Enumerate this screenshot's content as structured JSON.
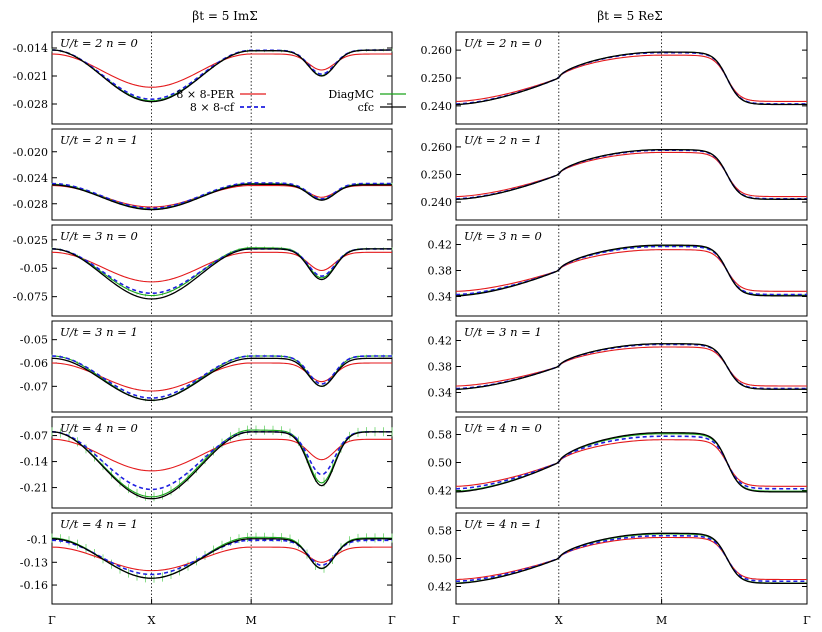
{
  "chart_data": {
    "type": "line",
    "x_ticks": [
      "Γ",
      "X",
      "M",
      "Γ"
    ],
    "columns": [
      {
        "title": "βt = 5   ImΣ"
      },
      {
        "title": "βt = 5   ReΣ"
      }
    ],
    "legend": {
      "placement": "inside top panel of left column",
      "entries": [
        {
          "label": "8 × 8-PER",
          "color": "#e41a1c",
          "style": "solid"
        },
        {
          "label": "DiagMC",
          "color": "#1aa51a",
          "style": "solid"
        },
        {
          "label": "8 × 8-cf",
          "color": "#1f1fe0",
          "style": "dashed"
        },
        {
          "label": "cfc",
          "color": "#000000",
          "style": "solid"
        }
      ]
    },
    "colors": {
      "per": "#e41a1c",
      "diagmc": "#1aa51a",
      "cf": "#1f1fe0",
      "cfc": "#000000",
      "errorbar": "#6bd46b"
    },
    "panels": [
      {
        "column": 0,
        "label": "U/t = 2   n = 0",
        "ylim": [
          -0.033,
          -0.01
        ],
        "yticks": [
          "-0.014",
          "-0.021",
          "-0.028"
        ],
        "ytick_values": [
          -0.014,
          -0.021,
          -0.028
        ],
        "series": {
          "per": {
            "G": -0.0155,
            "X": -0.0238,
            "M": -0.0155,
            "D": -0.0195
          },
          "diagmc": {
            "G": -0.0145,
            "X": -0.0272,
            "M": -0.0147,
            "D": -0.021
          },
          "cf": {
            "G": -0.0145,
            "X": -0.0268,
            "M": -0.0146,
            "D": -0.0206
          },
          "cfc": {
            "G": -0.0145,
            "X": -0.0274,
            "M": -0.0147,
            "D": -0.0211
          }
        }
      },
      {
        "column": 0,
        "label": "U/t = 2   n = 1",
        "ylim": [
          -0.0305,
          -0.0165
        ],
        "yticks": [
          "-0.020",
          "-0.024",
          "-0.028"
        ],
        "ytick_values": [
          -0.02,
          -0.024,
          -0.028
        ],
        "series": {
          "per": {
            "G": -0.0252,
            "X": -0.0285,
            "M": -0.0252,
            "D": -0.027
          },
          "diagmc": {
            "G": -0.025,
            "X": -0.0288,
            "M": -0.0249,
            "D": -0.0273
          },
          "cf": {
            "G": -0.0249,
            "X": -0.0287,
            "M": -0.0248,
            "D": -0.0272
          },
          "cfc": {
            "G": -0.0251,
            "X": -0.0289,
            "M": -0.025,
            "D": -0.0274
          }
        }
      },
      {
        "column": 0,
        "label": "U/t = 3   n = 0",
        "ylim": [
          -0.092,
          -0.012
        ],
        "yticks": [
          "-0.025",
          "-0.05",
          "-0.075"
        ],
        "ytick_values": [
          -0.025,
          -0.05,
          -0.075
        ],
        "series": {
          "per": {
            "G": -0.036,
            "X": -0.062,
            "M": -0.036,
            "D": -0.052
          },
          "diagmc": {
            "G": -0.033,
            "X": -0.074,
            "M": -0.032,
            "D": -0.058
          },
          "cf": {
            "G": -0.033,
            "X": -0.072,
            "M": -0.033,
            "D": -0.057
          },
          "cfc": {
            "G": -0.033,
            "X": -0.077,
            "M": -0.033,
            "D": -0.06
          }
        }
      },
      {
        "column": 0,
        "label": "U/t = 3   n = 1",
        "ylim": [
          -0.081,
          -0.042
        ],
        "yticks": [
          "-0.05",
          "-0.06",
          "-0.07"
        ],
        "ytick_values": [
          -0.05,
          -0.06,
          -0.07
        ],
        "series": {
          "per": {
            "G": -0.06,
            "X": -0.072,
            "M": -0.06,
            "D": -0.068
          },
          "diagmc": {
            "G": -0.057,
            "X": -0.076,
            "M": -0.057,
            "D": -0.07
          },
          "cf": {
            "G": -0.057,
            "X": -0.075,
            "M": -0.057,
            "D": -0.069
          },
          "cfc": {
            "G": -0.058,
            "X": -0.076,
            "M": -0.058,
            "D": -0.07
          }
        }
      },
      {
        "column": 0,
        "label": "U/t = 4   n = 0",
        "ylim": [
          -0.265,
          -0.02
        ],
        "yticks": [
          "-0.07",
          "-0.14",
          "-0.21"
        ],
        "ytick_values": [
          -0.07,
          -0.14,
          -0.21
        ],
        "series": {
          "per": {
            "G": -0.08,
            "X": -0.165,
            "M": -0.08,
            "D": -0.135
          },
          "diagmc": {
            "G": -0.06,
            "X": -0.235,
            "M": -0.055,
            "D": -0.195
          },
          "cf": {
            "G": -0.06,
            "X": -0.215,
            "M": -0.06,
            "D": -0.175
          },
          "cfc": {
            "G": -0.06,
            "X": -0.24,
            "M": -0.06,
            "D": -0.205
          }
        }
      },
      {
        "column": 0,
        "label": "U/t = 4   n = 1",
        "ylim": [
          -0.185,
          -0.065
        ],
        "yticks": [
          "-0.1",
          "-0.13",
          "-0.16"
        ],
        "ytick_values": [
          -0.1,
          -0.13,
          -0.16
        ],
        "series": {
          "per": {
            "G": -0.11,
            "X": -0.141,
            "M": -0.11,
            "D": -0.13
          },
          "diagmc": {
            "G": -0.098,
            "X": -0.151,
            "M": -0.097,
            "D": -0.138
          },
          "cf": {
            "G": -0.101,
            "X": -0.146,
            "M": -0.101,
            "D": -0.134
          },
          "cfc": {
            "G": -0.099,
            "X": -0.151,
            "M": -0.099,
            "D": -0.138
          }
        }
      },
      {
        "column": 1,
        "label": "U/t = 2   n = 0",
        "ylim": [
          0.2335,
          0.2665
        ],
        "yticks": [
          "0.260",
          "0.250",
          "0.240"
        ],
        "ytick_values": [
          0.26,
          0.25,
          0.24
        ],
        "series": {
          "per": {
            "G": 0.2416,
            "X": 0.25,
            "M": 0.2582
          },
          "diagmc": {
            "G": 0.2405,
            "X": 0.25,
            "M": 0.2593
          },
          "cf": {
            "G": 0.2407,
            "X": 0.25,
            "M": 0.2591
          },
          "cfc": {
            "G": 0.2405,
            "X": 0.25,
            "M": 0.2593
          }
        }
      },
      {
        "column": 1,
        "label": "U/t = 2   n = 1",
        "ylim": [
          0.2335,
          0.2665
        ],
        "yticks": [
          "0.260",
          "0.250",
          "0.240"
        ],
        "ytick_values": [
          0.26,
          0.25,
          0.24
        ],
        "series": {
          "per": {
            "G": 0.242,
            "X": 0.25,
            "M": 0.258
          },
          "diagmc": {
            "G": 0.241,
            "X": 0.25,
            "M": 0.259
          },
          "cf": {
            "G": 0.2412,
            "X": 0.25,
            "M": 0.2588
          },
          "cfc": {
            "G": 0.241,
            "X": 0.25,
            "M": 0.259
          }
        }
      },
      {
        "column": 1,
        "label": "U/t = 3   n = 0",
        "ylim": [
          0.31,
          0.45
        ],
        "yticks": [
          "0.42",
          "0.38",
          "0.34"
        ],
        "ytick_values": [
          0.42,
          0.38,
          0.34
        ],
        "series": {
          "per": {
            "G": 0.348,
            "X": 0.38,
            "M": 0.412
          },
          "diagmc": {
            "G": 0.342,
            "X": 0.38,
            "M": 0.418
          },
          "cf": {
            "G": 0.343,
            "X": 0.38,
            "M": 0.417
          },
          "cfc": {
            "G": 0.341,
            "X": 0.38,
            "M": 0.419
          }
        }
      },
      {
        "column": 1,
        "label": "U/t = 3   n = 1",
        "ylim": [
          0.31,
          0.45
        ],
        "yticks": [
          "0.42",
          "0.38",
          "0.34"
        ],
        "ytick_values": [
          0.42,
          0.38,
          0.34
        ],
        "series": {
          "per": {
            "G": 0.35,
            "X": 0.38,
            "M": 0.41
          },
          "diagmc": {
            "G": 0.345,
            "X": 0.38,
            "M": 0.415
          },
          "cf": {
            "G": 0.346,
            "X": 0.38,
            "M": 0.414
          },
          "cfc": {
            "G": 0.345,
            "X": 0.38,
            "M": 0.415
          }
        }
      },
      {
        "column": 1,
        "label": "U/t = 4   n = 0",
        "ylim": [
          0.37,
          0.63
        ],
        "yticks": [
          "0.58",
          "0.50",
          "0.42"
        ],
        "ytick_values": [
          0.58,
          0.5,
          0.42
        ],
        "series": {
          "per": {
            "G": 0.432,
            "X": 0.5,
            "M": 0.565
          },
          "diagmc": {
            "G": 0.418,
            "X": 0.5,
            "M": 0.582
          },
          "cf": {
            "G": 0.425,
            "X": 0.5,
            "M": 0.575
          },
          "cfc": {
            "G": 0.416,
            "X": 0.5,
            "M": 0.585
          }
        }
      },
      {
        "column": 1,
        "label": "U/t = 4   n = 1",
        "ylim": [
          0.37,
          0.63
        ],
        "yticks": [
          "0.58",
          "0.50",
          "0.42"
        ],
        "ytick_values": [
          0.58,
          0.5,
          0.42
        ],
        "series": {
          "per": {
            "G": 0.44,
            "X": 0.5,
            "M": 0.56
          },
          "diagmc": {
            "G": 0.43,
            "X": 0.5,
            "M": 0.57
          },
          "cf": {
            "G": 0.435,
            "X": 0.5,
            "M": 0.565
          },
          "cfc": {
            "G": 0.429,
            "X": 0.5,
            "M": 0.572
          }
        }
      }
    ]
  }
}
